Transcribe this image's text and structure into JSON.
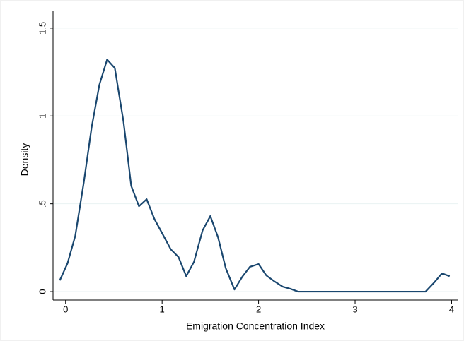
{
  "chart_data": {
    "type": "line",
    "xlabel": "Emigration Concentration Index",
    "ylabel": "Density",
    "color": "#1a476f",
    "x": [
      -0.06,
      0.02,
      0.1,
      0.19,
      0.27,
      0.35,
      0.43,
      0.51,
      0.6,
      0.68,
      0.76,
      0.84,
      0.92,
      1.0,
      1.09,
      1.17,
      1.25,
      1.33,
      1.42,
      1.5,
      1.58,
      1.66,
      1.75,
      1.83,
      1.91,
      2.0,
      2.08,
      2.16,
      2.25,
      2.33,
      2.41,
      2.49,
      2.57,
      2.65,
      2.74,
      2.82,
      2.9,
      2.98,
      3.06,
      3.15,
      3.23,
      3.31,
      3.39,
      3.47,
      3.56,
      3.64,
      3.73,
      3.82,
      3.9,
      3.98
    ],
    "values": [
      0.064,
      0.161,
      0.317,
      0.627,
      0.936,
      1.177,
      1.321,
      1.273,
      0.968,
      0.602,
      0.486,
      0.526,
      0.414,
      0.333,
      0.241,
      0.197,
      0.088,
      0.169,
      0.349,
      0.43,
      0.309,
      0.133,
      0.012,
      0.084,
      0.141,
      0.157,
      0.092,
      0.06,
      0.028,
      0.016,
      0,
      0,
      0,
      0,
      0,
      0,
      0,
      0,
      0,
      0,
      0,
      0,
      0,
      0,
      0,
      0,
      0,
      0.052,
      0.104,
      0.088
    ],
    "xlim": [
      -0.13,
      4.07
    ],
    "ylim": [
      -0.048,
      1.6
    ],
    "xticks": [
      0,
      1,
      2,
      3,
      4
    ],
    "yticks": [
      0,
      {
        "value": 0.5,
        "label": ".5"
      },
      1,
      1.5
    ],
    "grid": true
  }
}
